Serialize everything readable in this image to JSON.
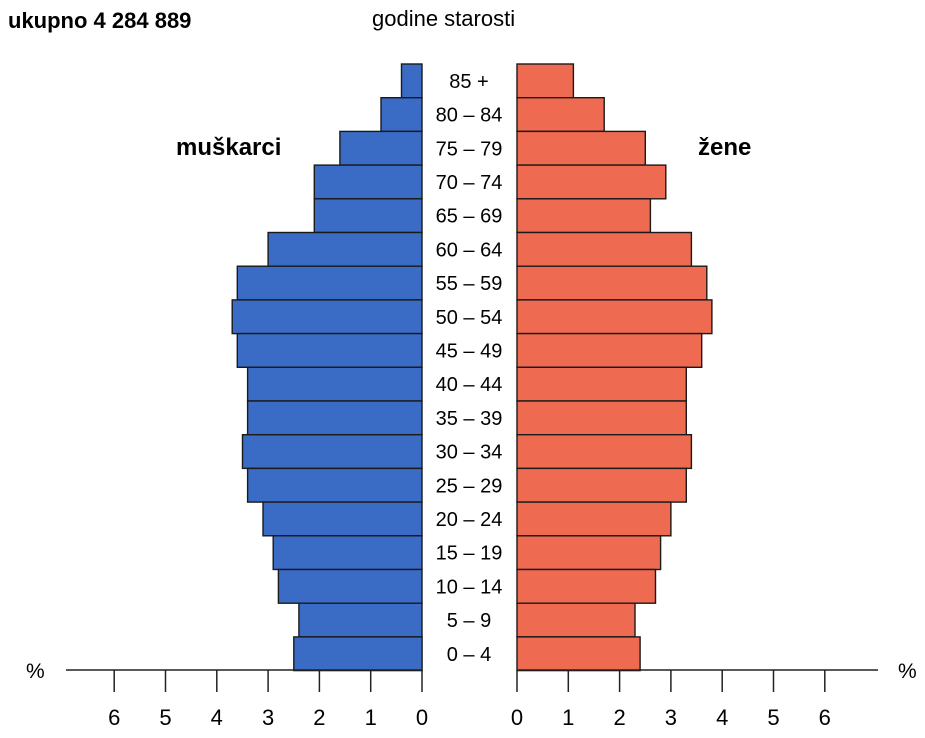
{
  "chart_data": {
    "type": "bar",
    "orientation": "population-pyramid",
    "title": "ukupno 4 284 889",
    "category_axis_label": "godine starosti",
    "unit_label": "%",
    "categories": [
      "85 +",
      "80 – 84",
      "75 – 79",
      "70 – 74",
      "65 – 69",
      "60 – 64",
      "55 – 59",
      "50 – 54",
      "45 – 49",
      "40 – 44",
      "35 – 39",
      "30 – 34",
      "25 – 29",
      "20 – 24",
      "15 – 19",
      "10 – 14",
      "5 – 9",
      "0 – 4"
    ],
    "series": [
      {
        "name": "muškarci",
        "color": "#3A6CC6",
        "side": "left",
        "values": [
          0.4,
          0.8,
          1.6,
          2.1,
          2.1,
          3.0,
          3.6,
          3.7,
          3.6,
          3.4,
          3.4,
          3.5,
          3.4,
          3.1,
          2.9,
          2.8,
          2.4,
          2.5
        ]
      },
      {
        "name": "žene",
        "color": "#EE6A50",
        "side": "right",
        "values": [
          1.1,
          1.7,
          2.5,
          2.9,
          2.6,
          3.4,
          3.7,
          3.8,
          3.6,
          3.3,
          3.3,
          3.4,
          3.3,
          3.0,
          2.8,
          2.7,
          2.3,
          2.4
        ]
      }
    ],
    "x_ticks": [
      "6",
      "5",
      "4",
      "3",
      "2",
      "1",
      "0"
    ],
    "x_ticks_right": [
      "0",
      "1",
      "2",
      "3",
      "4",
      "5",
      "6"
    ],
    "xlim": [
      0,
      6
    ],
    "grid": false,
    "legend": "none"
  }
}
